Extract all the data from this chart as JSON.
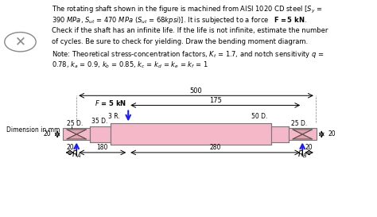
{
  "bg_color": "#f5f5f5",
  "text_color": "#222222",
  "shaft_color": "#f4a0b0",
  "shaft_edge_color": "#888888",
  "bearing_color": "#d4a0a0",
  "dim_line_color": "#222222",
  "force_color": "#1a1aaa",
  "title_lines": [
    "The rotating shaft shown in the figure is machined from AISI 1020 CD steel [Sₒ =",
    "390 MPa, Sᵤt = 470 MPa (Sᵤt = 68kpsi)]. It is subjected to a force      F = 5 kN.",
    "Check if the shaft has an infinite life. If the life is not infinite, estimate the number",
    "of cycles. Be sure to check for yielding. Draw the bending moment diagram.",
    "Note: Theoretical stress-concentration factors, Kₜ = 1.7, and notch sensitivity q =",
    "0.78, kₐ = 0.9, kᵇ = 0.85, kᶜ = kᵈ = kₑ = kḟ = 1"
  ]
}
